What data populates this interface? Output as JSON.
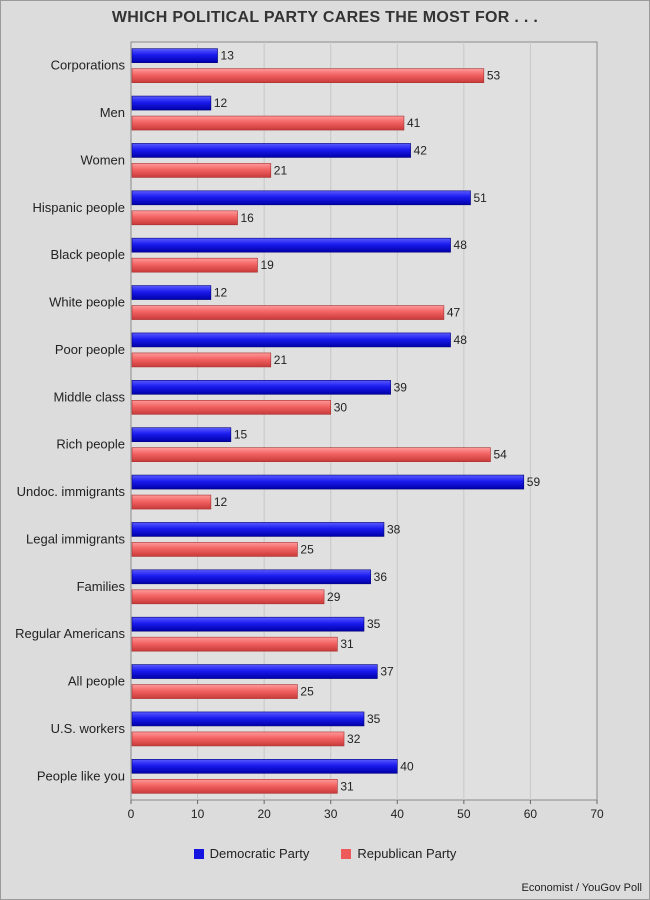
{
  "chart_data": {
    "type": "bar",
    "orientation": "horizontal",
    "title": "WHICH POLITICAL PARTY CARES THE MOST FOR . . .",
    "categories": [
      "Corporations",
      "Men",
      "Women",
      "Hispanic people",
      "Black people",
      "White people",
      "Poor people",
      "Middle class",
      "Rich people",
      "Undoc. immigrants",
      "Legal immigrants",
      "Families",
      "Regular Americans",
      "All people",
      "U.S. workers",
      "People like you"
    ],
    "series": [
      {
        "name": "Democratic Party",
        "color": "#1414e0",
        "values": [
          13,
          12,
          42,
          51,
          48,
          12,
          48,
          39,
          15,
          59,
          38,
          36,
          35,
          37,
          35,
          40
        ]
      },
      {
        "name": "Republican Party",
        "color": "#ee5a5a",
        "values": [
          53,
          41,
          21,
          16,
          19,
          47,
          21,
          30,
          54,
          12,
          25,
          29,
          31,
          25,
          32,
          31
        ]
      }
    ],
    "xlim": [
      0,
      70
    ],
    "xticks": [
      0,
      10,
      20,
      30,
      40,
      50,
      60,
      70
    ],
    "grid": "vertical",
    "legend_position": "bottom"
  },
  "source": "Economist / YouGov Poll"
}
